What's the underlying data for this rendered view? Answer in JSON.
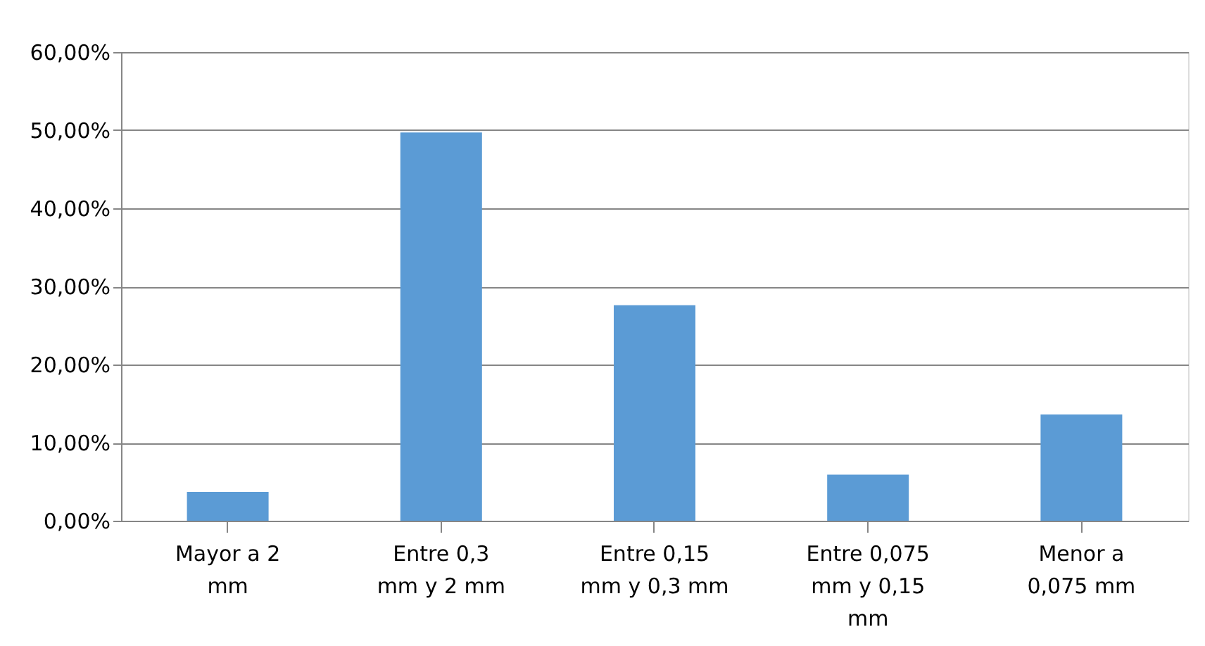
{
  "chart_data": {
    "type": "bar",
    "categories": [
      "Mayor a 2 mm",
      "Entre 0,3 mm y 2 mm",
      "Entre 0,15 mm y 0,3 mm",
      "Entre 0,075 mm y 0,15 mm",
      "Menor a 0,075 mm"
    ],
    "values": [
      3.7,
      49.7,
      27.6,
      5.9,
      13.6
    ],
    "color": "#5b9bd5",
    "ylim": [
      0,
      60
    ],
    "yticks": [
      {
        "value": 0,
        "label": "0,00%"
      },
      {
        "value": 10,
        "label": "10,00%"
      },
      {
        "value": 20,
        "label": "20,00%"
      },
      {
        "value": 30,
        "label": "30,00%"
      },
      {
        "value": 40,
        "label": "40,00%"
      },
      {
        "value": 50,
        "label": "50,00%"
      },
      {
        "value": 60,
        "label": "60,00%"
      }
    ],
    "grid": "y"
  }
}
